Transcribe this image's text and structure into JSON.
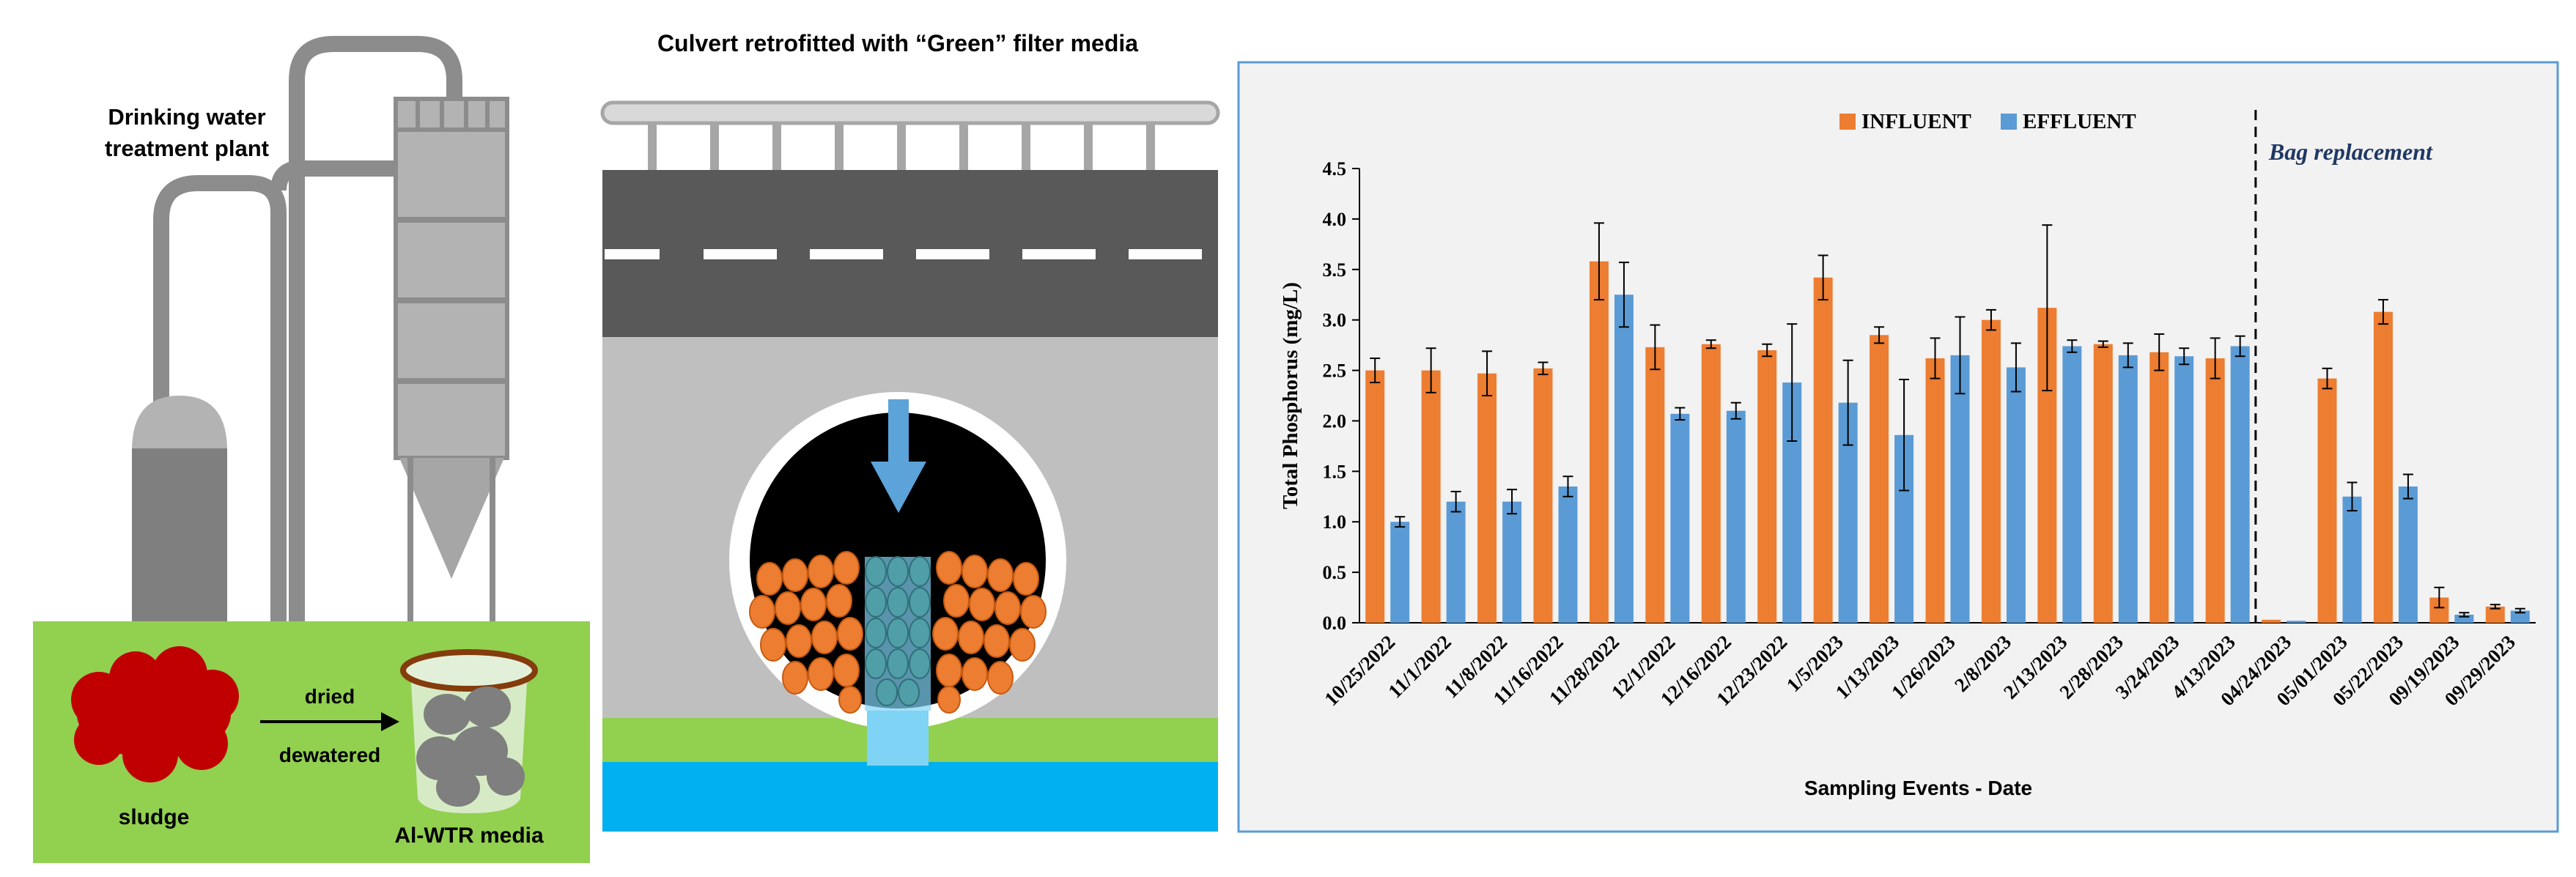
{
  "panel_left": {
    "title_line1": "Drinking water",
    "title_line2": "treatment plant",
    "sludge_label": "sludge",
    "arrow_label_top": "dried",
    "arrow_label_bottom": "dewatered",
    "media_label": "Al-WTR media"
  },
  "panel_middle": {
    "title": "Culvert retrofitted with “Green” filter media"
  },
  "colors": {
    "influent": "#ED7D31",
    "effluent": "#5B9BD5",
    "ground_green": "#92D050",
    "sludge_red": "#C00000",
    "water_blue": "#00B0F0"
  },
  "chart_data": {
    "type": "bar",
    "ylabel": "Total Phosphorus (mg/L)",
    "xlabel": "Sampling Events - Date",
    "ylim": [
      0,
      4.5
    ],
    "yticks": [
      "0.0",
      "0.5",
      "1.0",
      "1.5",
      "2.0",
      "2.5",
      "3.0",
      "3.5",
      "4.0",
      "4.5"
    ],
    "legend_placement": "top-center",
    "annotation": "Bag replacement",
    "divider_after_index": 15,
    "categories": [
      "10/25/2022",
      "11/1/2022",
      "11/8/2022",
      "11/16/2022",
      "11/28/2022",
      "12/1/2022",
      "12/16/2022",
      "12/23/2022",
      "1/5/2023",
      "1/13/2023",
      "1/26/2023",
      "2/8/2023",
      "2/13/2023",
      "2/28/2023",
      "3/24/2023",
      "4/13/2023",
      "04/24/2023",
      "05/01/2023",
      "05/22/2023",
      "09/19/2023",
      "09/29/2023"
    ],
    "series": [
      {
        "name": "INFLUENT",
        "values": [
          2.5,
          2.5,
          2.47,
          2.52,
          3.58,
          2.73,
          2.76,
          2.7,
          3.42,
          2.85,
          2.62,
          3.0,
          3.12,
          2.76,
          2.68,
          2.62,
          0.03,
          2.42,
          3.08,
          0.25,
          0.16
        ],
        "errors": [
          0.12,
          0.22,
          0.22,
          0.06,
          0.38,
          0.22,
          0.04,
          0.06,
          0.22,
          0.08,
          0.2,
          0.1,
          0.82,
          0.03,
          0.18,
          0.2,
          0.0,
          0.1,
          0.12,
          0.1,
          0.02
        ]
      },
      {
        "name": "EFFLUENT",
        "values": [
          1.0,
          1.2,
          1.2,
          1.35,
          3.25,
          2.07,
          2.1,
          2.38,
          2.18,
          1.86,
          2.65,
          2.53,
          2.74,
          2.65,
          2.64,
          2.74,
          0.02,
          1.25,
          1.35,
          0.08,
          0.12
        ],
        "errors": [
          0.05,
          0.1,
          0.12,
          0.1,
          0.32,
          0.06,
          0.08,
          0.58,
          0.42,
          0.55,
          0.38,
          0.24,
          0.06,
          0.12,
          0.08,
          0.1,
          0.0,
          0.14,
          0.12,
          0.02,
          0.02
        ]
      }
    ]
  }
}
